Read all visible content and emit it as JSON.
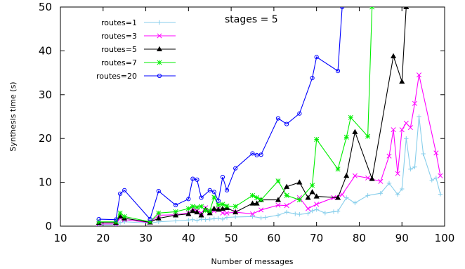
{
  "chart_data": {
    "type": "line",
    "title": "",
    "annotation": "stages = 5",
    "xlabel": "Number of messages",
    "ylabel": "Synthesis time (s)",
    "xlim": [
      10,
      100
    ],
    "ylim": [
      0,
      50
    ],
    "xticks": [
      10,
      20,
      30,
      40,
      50,
      60,
      70,
      80,
      90,
      100
    ],
    "yticks": [
      0,
      10,
      20,
      30,
      40,
      50
    ],
    "grid": false,
    "legend_position": "top-left",
    "series": [
      {
        "name": "routes=1",
        "color": "#87ceeb",
        "marker": "plus",
        "x": [
          19,
          23,
          24,
          25,
          31,
          33,
          37,
          40,
          41,
          42,
          43,
          44,
          45,
          46,
          47,
          48,
          49,
          51,
          55,
          57,
          58,
          61,
          63,
          65,
          66,
          68,
          69,
          70,
          72,
          74,
          75,
          77,
          79,
          82,
          85,
          87,
          89,
          90,
          91,
          92,
          93,
          94,
          95,
          97,
          98,
          99
        ],
        "y": [
          0.3,
          0.3,
          0.8,
          1.0,
          0.7,
          1.0,
          1.2,
          1.4,
          1.5,
          1.3,
          1.6,
          1.5,
          1.6,
          1.7,
          1.8,
          1.6,
          2.0,
          2.1,
          2.2,
          1.9,
          2.0,
          2.5,
          3.2,
          2.8,
          2.7,
          2.9,
          3.5,
          3.8,
          3.0,
          3.3,
          3.4,
          6.5,
          5.3,
          7.0,
          7.5,
          9.8,
          7.2,
          8.5,
          20.0,
          13.0,
          13.5,
          25.0,
          16.5,
          10.5,
          11.0,
          7.3
        ]
      },
      {
        "name": "routes=3",
        "color": "#ff00ff",
        "marker": "cross",
        "x": [
          19,
          23,
          24,
          25,
          31,
          33,
          37,
          40,
          41,
          42,
          43,
          44,
          45,
          46,
          47,
          48,
          49,
          51,
          55,
          57,
          61,
          63,
          66,
          68,
          70,
          74,
          76,
          79,
          82,
          85,
          87,
          88,
          89,
          90,
          91,
          92,
          93,
          94,
          98,
          99
        ],
        "y": [
          0.5,
          0.5,
          1.8,
          1.5,
          0.8,
          2.5,
          2.6,
          3.0,
          4.0,
          3.5,
          3.0,
          4.2,
          3.3,
          3.5,
          4.0,
          3.0,
          3.0,
          3.2,
          2.8,
          3.7,
          4.8,
          4.7,
          6.5,
          4.0,
          5.0,
          6.5,
          7.2,
          11.5,
          11.0,
          10.2,
          16.0,
          22.0,
          12.0,
          22.0,
          23.5,
          22.5,
          28.0,
          34.5,
          16.7,
          11.5
        ]
      },
      {
        "name": "routes=5",
        "color": "#000000",
        "marker": "triangle",
        "x": [
          19,
          23,
          24,
          25,
          31,
          33,
          37,
          40,
          41,
          42,
          43,
          44,
          45,
          46,
          47,
          48,
          49,
          51,
          55,
          56,
          57,
          61,
          63,
          66,
          68,
          69,
          70,
          75,
          77,
          79,
          83,
          88,
          90,
          91
        ],
        "y": [
          0.8,
          0.8,
          2.3,
          1.8,
          0.9,
          1.8,
          2.5,
          2.8,
          3.5,
          3.2,
          2.5,
          3.8,
          3.0,
          4.0,
          3.8,
          4.0,
          4.2,
          3.2,
          5.2,
          5.2,
          6.0,
          6.0,
          9.0,
          10.0,
          6.5,
          7.8,
          6.8,
          6.5,
          11.5,
          21.5,
          10.8,
          38.8,
          33.0,
          50.0
        ]
      },
      {
        "name": "routes=7",
        "color": "#00ee00",
        "marker": "star",
        "x": [
          19,
          23,
          24,
          25,
          31,
          33,
          37,
          40,
          41,
          42,
          43,
          44,
          45,
          46,
          47,
          48,
          49,
          51,
          55,
          56,
          57,
          61,
          63,
          66,
          69,
          70,
          75,
          77,
          78,
          82,
          83
        ],
        "y": [
          1.0,
          1.0,
          3.0,
          2.2,
          1.0,
          3.0,
          3.3,
          4.0,
          4.5,
          4.3,
          4.5,
          3.6,
          3.5,
          6.6,
          4.8,
          5.0,
          4.6,
          4.5,
          7.0,
          6.5,
          6.0,
          10.3,
          7.0,
          6.0,
          9.3,
          19.8,
          13.0,
          20.3,
          24.8,
          20.5,
          50.0
        ]
      },
      {
        "name": "routes=20",
        "color": "#0000ff",
        "marker": "circle",
        "x": [
          19,
          23,
          24,
          25,
          31,
          33,
          37,
          40,
          41,
          42,
          43,
          45,
          46,
          47,
          48,
          49,
          51,
          55,
          56,
          57,
          61,
          63,
          66,
          69,
          70,
          75,
          76
        ],
        "y": [
          1.6,
          1.5,
          7.4,
          8.2,
          1.6,
          8.0,
          4.8,
          6.2,
          10.8,
          10.6,
          6.5,
          8.2,
          7.8,
          5.8,
          11.2,
          8.2,
          13.2,
          16.6,
          16.2,
          16.3,
          24.6,
          23.3,
          25.7,
          33.8,
          38.6,
          35.4,
          50.0
        ]
      }
    ]
  }
}
